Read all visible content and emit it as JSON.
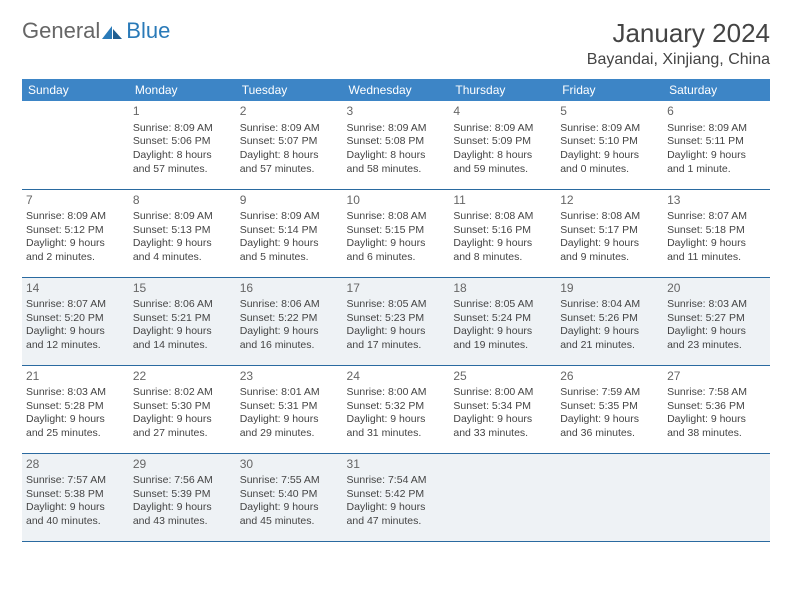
{
  "logo": {
    "text1": "General",
    "text2": "Blue"
  },
  "colors": {
    "header_bg": "#3d85c6",
    "row_border": "#2a6aa0",
    "gray_row": "#eef2f5",
    "logo_blue": "#2a7ab8"
  },
  "title": {
    "month": "January 2024",
    "location": "Bayandai, Xinjiang, China"
  },
  "day_headers": [
    "Sunday",
    "Monday",
    "Tuesday",
    "Wednesday",
    "Thursday",
    "Friday",
    "Saturday"
  ],
  "weeks": [
    {
      "gray": false,
      "days": [
        null,
        {
          "n": "1",
          "sr": "Sunrise: 8:09 AM",
          "ss": "Sunset: 5:06 PM",
          "d1": "Daylight: 8 hours",
          "d2": "and 57 minutes."
        },
        {
          "n": "2",
          "sr": "Sunrise: 8:09 AM",
          "ss": "Sunset: 5:07 PM",
          "d1": "Daylight: 8 hours",
          "d2": "and 57 minutes."
        },
        {
          "n": "3",
          "sr": "Sunrise: 8:09 AM",
          "ss": "Sunset: 5:08 PM",
          "d1": "Daylight: 8 hours",
          "d2": "and 58 minutes."
        },
        {
          "n": "4",
          "sr": "Sunrise: 8:09 AM",
          "ss": "Sunset: 5:09 PM",
          "d1": "Daylight: 8 hours",
          "d2": "and 59 minutes."
        },
        {
          "n": "5",
          "sr": "Sunrise: 8:09 AM",
          "ss": "Sunset: 5:10 PM",
          "d1": "Daylight: 9 hours",
          "d2": "and 0 minutes."
        },
        {
          "n": "6",
          "sr": "Sunrise: 8:09 AM",
          "ss": "Sunset: 5:11 PM",
          "d1": "Daylight: 9 hours",
          "d2": "and 1 minute."
        }
      ]
    },
    {
      "gray": false,
      "days": [
        {
          "n": "7",
          "sr": "Sunrise: 8:09 AM",
          "ss": "Sunset: 5:12 PM",
          "d1": "Daylight: 9 hours",
          "d2": "and 2 minutes."
        },
        {
          "n": "8",
          "sr": "Sunrise: 8:09 AM",
          "ss": "Sunset: 5:13 PM",
          "d1": "Daylight: 9 hours",
          "d2": "and 4 minutes."
        },
        {
          "n": "9",
          "sr": "Sunrise: 8:09 AM",
          "ss": "Sunset: 5:14 PM",
          "d1": "Daylight: 9 hours",
          "d2": "and 5 minutes."
        },
        {
          "n": "10",
          "sr": "Sunrise: 8:08 AM",
          "ss": "Sunset: 5:15 PM",
          "d1": "Daylight: 9 hours",
          "d2": "and 6 minutes."
        },
        {
          "n": "11",
          "sr": "Sunrise: 8:08 AM",
          "ss": "Sunset: 5:16 PM",
          "d1": "Daylight: 9 hours",
          "d2": "and 8 minutes."
        },
        {
          "n": "12",
          "sr": "Sunrise: 8:08 AM",
          "ss": "Sunset: 5:17 PM",
          "d1": "Daylight: 9 hours",
          "d2": "and 9 minutes."
        },
        {
          "n": "13",
          "sr": "Sunrise: 8:07 AM",
          "ss": "Sunset: 5:18 PM",
          "d1": "Daylight: 9 hours",
          "d2": "and 11 minutes."
        }
      ]
    },
    {
      "gray": true,
      "days": [
        {
          "n": "14",
          "sr": "Sunrise: 8:07 AM",
          "ss": "Sunset: 5:20 PM",
          "d1": "Daylight: 9 hours",
          "d2": "and 12 minutes."
        },
        {
          "n": "15",
          "sr": "Sunrise: 8:06 AM",
          "ss": "Sunset: 5:21 PM",
          "d1": "Daylight: 9 hours",
          "d2": "and 14 minutes."
        },
        {
          "n": "16",
          "sr": "Sunrise: 8:06 AM",
          "ss": "Sunset: 5:22 PM",
          "d1": "Daylight: 9 hours",
          "d2": "and 16 minutes."
        },
        {
          "n": "17",
          "sr": "Sunrise: 8:05 AM",
          "ss": "Sunset: 5:23 PM",
          "d1": "Daylight: 9 hours",
          "d2": "and 17 minutes."
        },
        {
          "n": "18",
          "sr": "Sunrise: 8:05 AM",
          "ss": "Sunset: 5:24 PM",
          "d1": "Daylight: 9 hours",
          "d2": "and 19 minutes."
        },
        {
          "n": "19",
          "sr": "Sunrise: 8:04 AM",
          "ss": "Sunset: 5:26 PM",
          "d1": "Daylight: 9 hours",
          "d2": "and 21 minutes."
        },
        {
          "n": "20",
          "sr": "Sunrise: 8:03 AM",
          "ss": "Sunset: 5:27 PM",
          "d1": "Daylight: 9 hours",
          "d2": "and 23 minutes."
        }
      ]
    },
    {
      "gray": false,
      "days": [
        {
          "n": "21",
          "sr": "Sunrise: 8:03 AM",
          "ss": "Sunset: 5:28 PM",
          "d1": "Daylight: 9 hours",
          "d2": "and 25 minutes."
        },
        {
          "n": "22",
          "sr": "Sunrise: 8:02 AM",
          "ss": "Sunset: 5:30 PM",
          "d1": "Daylight: 9 hours",
          "d2": "and 27 minutes."
        },
        {
          "n": "23",
          "sr": "Sunrise: 8:01 AM",
          "ss": "Sunset: 5:31 PM",
          "d1": "Daylight: 9 hours",
          "d2": "and 29 minutes."
        },
        {
          "n": "24",
          "sr": "Sunrise: 8:00 AM",
          "ss": "Sunset: 5:32 PM",
          "d1": "Daylight: 9 hours",
          "d2": "and 31 minutes."
        },
        {
          "n": "25",
          "sr": "Sunrise: 8:00 AM",
          "ss": "Sunset: 5:34 PM",
          "d1": "Daylight: 9 hours",
          "d2": "and 33 minutes."
        },
        {
          "n": "26",
          "sr": "Sunrise: 7:59 AM",
          "ss": "Sunset: 5:35 PM",
          "d1": "Daylight: 9 hours",
          "d2": "and 36 minutes."
        },
        {
          "n": "27",
          "sr": "Sunrise: 7:58 AM",
          "ss": "Sunset: 5:36 PM",
          "d1": "Daylight: 9 hours",
          "d2": "and 38 minutes."
        }
      ]
    },
    {
      "gray": true,
      "days": [
        {
          "n": "28",
          "sr": "Sunrise: 7:57 AM",
          "ss": "Sunset: 5:38 PM",
          "d1": "Daylight: 9 hours",
          "d2": "and 40 minutes."
        },
        {
          "n": "29",
          "sr": "Sunrise: 7:56 AM",
          "ss": "Sunset: 5:39 PM",
          "d1": "Daylight: 9 hours",
          "d2": "and 43 minutes."
        },
        {
          "n": "30",
          "sr": "Sunrise: 7:55 AM",
          "ss": "Sunset: 5:40 PM",
          "d1": "Daylight: 9 hours",
          "d2": "and 45 minutes."
        },
        {
          "n": "31",
          "sr": "Sunrise: 7:54 AM",
          "ss": "Sunset: 5:42 PM",
          "d1": "Daylight: 9 hours",
          "d2": "and 47 minutes."
        },
        null,
        null,
        null
      ]
    }
  ]
}
